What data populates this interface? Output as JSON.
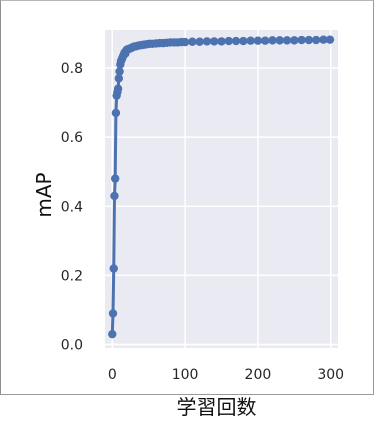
{
  "chart_data": {
    "type": "line",
    "title": "",
    "xlabel": "学習回数",
    "ylabel": "mAP",
    "xlim": [
      -10,
      310
    ],
    "ylim": [
      -0.01,
      0.91
    ],
    "xticks": [
      0,
      100,
      200,
      300
    ],
    "yticks": [
      0.0,
      0.2,
      0.4,
      0.6,
      0.8
    ],
    "xtick_labels": [
      "0",
      "100",
      "200",
      "300"
    ],
    "ytick_labels": [
      "0.0",
      "0.2",
      "0.4",
      "0.6",
      "0.8"
    ],
    "grid": true,
    "legend": "none",
    "background": "#eaeaf2",
    "grid_color": "#ffffff",
    "series_color": "#4c72b0",
    "series": [
      {
        "x": [
          0,
          1,
          2,
          3,
          4,
          5,
          6,
          7,
          8,
          9,
          10,
          11,
          12,
          13,
          14,
          15,
          16,
          17,
          18,
          19,
          20,
          22,
          24,
          26,
          28,
          30,
          33,
          36,
          39,
          42,
          45,
          48,
          51,
          55,
          60,
          65,
          70,
          75,
          80,
          85,
          90,
          95,
          100,
          110,
          120,
          130,
          140,
          150,
          160,
          170,
          180,
          190,
          200,
          210,
          220,
          230,
          240,
          250,
          260,
          270,
          280,
          290,
          299
        ],
        "y": [
          0.03,
          0.09,
          0.22,
          0.43,
          0.48,
          0.67,
          0.72,
          0.73,
          0.74,
          0.77,
          0.79,
          0.81,
          0.82,
          0.825,
          0.83,
          0.835,
          0.84,
          0.845,
          0.842,
          0.85,
          0.853,
          0.855,
          0.856,
          0.858,
          0.86,
          0.862,
          0.863,
          0.865,
          0.866,
          0.867,
          0.868,
          0.869,
          0.87,
          0.87,
          0.871,
          0.872,
          0.872,
          0.873,
          0.874,
          0.874,
          0.874,
          0.875,
          0.875,
          0.876,
          0.876,
          0.877,
          0.877,
          0.877,
          0.878,
          0.878,
          0.878,
          0.879,
          0.879,
          0.879,
          0.88,
          0.88,
          0.88,
          0.88,
          0.881,
          0.881,
          0.881,
          0.882,
          0.882
        ]
      }
    ]
  }
}
